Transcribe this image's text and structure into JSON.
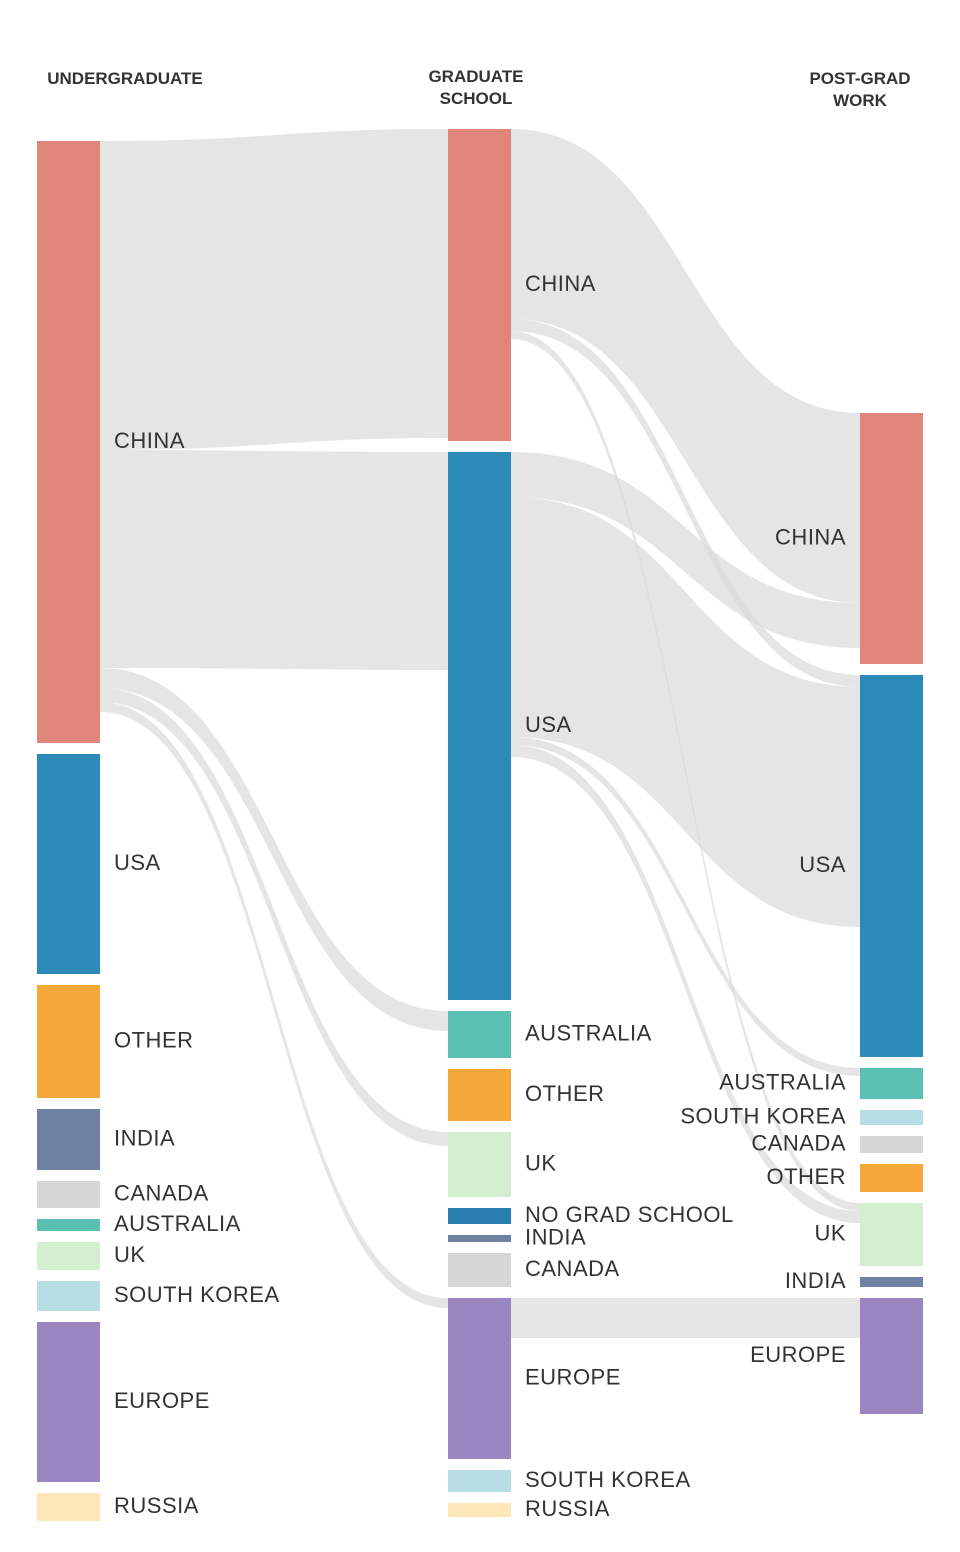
{
  "chart_data": {
    "type": "sankey",
    "columns": [
      {
        "title": "UNDERGRADUATE",
        "nodes": [
          {
            "name": "CHINA",
            "color": "#e0857a",
            "value": 602
          },
          {
            "name": "USA",
            "color": "#2b8ab8",
            "value": 220
          },
          {
            "name": "OTHER",
            "color": "#f5a83a",
            "value": 113
          },
          {
            "name": "INDIA",
            "color": "#6f82a3",
            "value": 61
          },
          {
            "name": "CANADA",
            "color": "#d6d6d6",
            "value": 27
          },
          {
            "name": "AUSTRALIA",
            "color": "#5bbfb3",
            "value": 12
          },
          {
            "name": "UK",
            "color": "#d4eed0",
            "value": 28
          },
          {
            "name": "SOUTH KOREA",
            "color": "#b7dde6",
            "value": 30
          },
          {
            "name": "EUROPE",
            "color": "#9b86c4",
            "value": 160
          },
          {
            "name": "RUSSIA",
            "color": "#fde6b8",
            "value": 28
          }
        ],
        "flows": [
          {
            "from": "CHINA",
            "to": "CHINA",
            "value": 309
          },
          {
            "from": "CHINA",
            "to": "USA",
            "value": 218
          },
          {
            "from": "CHINA",
            "to": "AUSTRALIA",
            "value": 20
          },
          {
            "from": "CHINA",
            "to": "UK",
            "value": 14
          },
          {
            "from": "CHINA",
            "to": "EUROPE",
            "value": 10
          }
        ]
      },
      {
        "title": "GRADUATE SCHOOL",
        "nodes": [
          {
            "name": "CHINA",
            "color": "#e0857a",
            "value": 312
          },
          {
            "name": "USA",
            "color": "#2b8ab8",
            "value": 548
          },
          {
            "name": "AUSTRALIA",
            "color": "#5bbfb3",
            "value": 47
          },
          {
            "name": "OTHER",
            "color": "#f5a83a",
            "value": 52
          },
          {
            "name": "UK",
            "color": "#d4eed0",
            "value": 65
          },
          {
            "name": "NO GRAD SCHOOL",
            "color": "#2a7fb0",
            "value": 16
          },
          {
            "name": "INDIA",
            "color": "#6f82a3",
            "value": 7
          },
          {
            "name": "CANADA",
            "color": "#d6d6d6",
            "value": 34
          },
          {
            "name": "EUROPE",
            "color": "#9b86c4",
            "value": 161
          },
          {
            "name": "SOUTH KOREA",
            "color": "#b7dde6",
            "value": 22
          },
          {
            "name": "RUSSIA",
            "color": "#fde6b8",
            "value": 14
          }
        ],
        "flows": [
          {
            "from": "CHINA",
            "to": "CHINA",
            "value": 190
          },
          {
            "from": "CHINA",
            "to": "USA",
            "value": 12
          },
          {
            "from": "CHINA",
            "to": "UK",
            "value": 8
          },
          {
            "from": "USA",
            "to": "CHINA",
            "value": 45
          },
          {
            "from": "USA",
            "to": "USA",
            "value": 240
          },
          {
            "from": "USA",
            "to": "AUSTRALIA",
            "value": 8
          },
          {
            "from": "USA",
            "to": "UK",
            "value": 12
          },
          {
            "from": "EUROPE",
            "to": "EUROPE",
            "value": 40
          }
        ]
      },
      {
        "title": "POST-GRAD WORK",
        "nodes": [
          {
            "name": "CHINA",
            "color": "#e0857a",
            "value": 251
          },
          {
            "name": "USA",
            "color": "#2b8ab8",
            "value": 382
          },
          {
            "name": "AUSTRALIA",
            "color": "#5bbfb3",
            "value": 31
          },
          {
            "name": "SOUTH KOREA",
            "color": "#b7dde6",
            "value": 15
          },
          {
            "name": "CANADA",
            "color": "#d6d6d6",
            "value": 17
          },
          {
            "name": "OTHER",
            "color": "#f5a83a",
            "value": 28
          },
          {
            "name": "UK",
            "color": "#d4eed0",
            "value": 63
          },
          {
            "name": "INDIA",
            "color": "#6f82a3",
            "value": 10
          },
          {
            "name": "EUROPE",
            "color": "#9b86c4",
            "value": 116
          }
        ]
      }
    ]
  }
}
